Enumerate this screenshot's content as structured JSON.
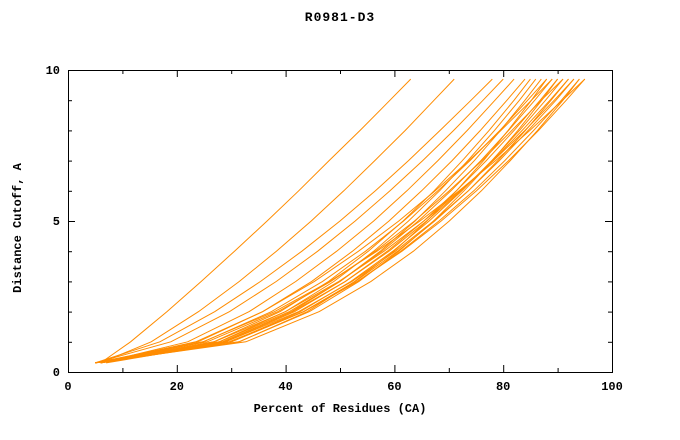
{
  "title": "R0981-D3",
  "chart_data": {
    "type": "line",
    "title": "R0981-D3",
    "xlabel": "Percent of Residues (CA)",
    "ylabel": "Distance Cutoff, A",
    "xlim": [
      0,
      100
    ],
    "ylim": [
      0,
      10
    ],
    "x_ticks": [
      0,
      20,
      40,
      60,
      80,
      100
    ],
    "y_ticks": [
      0,
      5,
      10
    ],
    "x_minor_ticks": [
      10,
      30,
      50,
      70,
      90
    ],
    "y_minor_ticks": [
      1,
      2,
      3,
      4,
      6,
      7,
      8,
      9
    ],
    "grid": false,
    "legend": "none",
    "axis_color": "#000000",
    "line_color": "#ff8c00",
    "y_levels": [
      0.3,
      1,
      2,
      3,
      4,
      5,
      6,
      7,
      8,
      9,
      9.7
    ],
    "series_x": [
      [
        6,
        11.5,
        18.2,
        24.5,
        30.6,
        36.6,
        42.4,
        48.0,
        53.7,
        59.2,
        63.0
      ],
      [
        6,
        15.3,
        24.0,
        31.5,
        38.3,
        44.7,
        50.7,
        56.4,
        62.0,
        67.3,
        71.0
      ],
      [
        5,
        16.9,
        27.0,
        35.4,
        43.0,
        50.0,
        56.5,
        62.6,
        68.4,
        74.1,
        78.0
      ],
      [
        5,
        18.9,
        29.7,
        38.3,
        45.9,
        52.8,
        59.2,
        65.2,
        70.9,
        76.3,
        80.0
      ],
      [
        6,
        22.0,
        33.3,
        41.9,
        49.4,
        56.2,
        62.3,
        68.0,
        73.4,
        78.5,
        82.0
      ],
      [
        5,
        23.9,
        35.8,
        44.8,
        52.3,
        59.0,
        65.0,
        70.6,
        75.8,
        80.7,
        84.0
      ],
      [
        5,
        26.8,
        39.0,
        47.9,
        55.2,
        61.6,
        67.3,
        72.5,
        77.4,
        82.0,
        85.0
      ],
      [
        6,
        27.8,
        40.0,
        48.9,
        56.2,
        62.6,
        68.3,
        73.5,
        78.4,
        83.0,
        86.0
      ],
      [
        5,
        28.6,
        41.1,
        50.0,
        57.4,
        63.8,
        69.4,
        74.7,
        79.5,
        84.0,
        87.0
      ],
      [
        6,
        31.5,
        44.0,
        52.7,
        59.9,
        66.0,
        71.4,
        76.4,
        80.9,
        85.2,
        88.0
      ],
      [
        5,
        24.9,
        37.4,
        46.8,
        54.7,
        61.7,
        68.0,
        73.9,
        79.4,
        84.5,
        88.0
      ],
      [
        5,
        27.9,
        40.7,
        50.0,
        57.7,
        64.4,
        70.4,
        75.9,
        81.0,
        85.8,
        89.0
      ],
      [
        6,
        23.5,
        35.8,
        45.3,
        53.4,
        60.8,
        67.5,
        73.7,
        79.6,
        85.2,
        89.0
      ],
      [
        5,
        31.4,
        44.4,
        53.5,
        60.8,
        67.2,
        72.8,
        78.0,
        82.7,
        87.1,
        90.0
      ],
      [
        6,
        28.9,
        41.7,
        51.0,
        58.7,
        65.4,
        71.4,
        76.9,
        82.0,
        86.8,
        90.0
      ],
      [
        5,
        25.6,
        38.6,
        48.3,
        56.5,
        63.7,
        70.1,
        76.1,
        81.6,
        87.0,
        91.0
      ],
      [
        7,
        29.9,
        42.7,
        52.0,
        59.7,
        66.4,
        72.4,
        77.9,
        83.0,
        87.8,
        91.0
      ],
      [
        5,
        30.1,
        43.3,
        52.8,
        60.6,
        67.4,
        73.6,
        79.0,
        84.1,
        88.8,
        92.0
      ],
      [
        6,
        28.4,
        41.3,
        51.0,
        59.0,
        65.9,
        72.3,
        78.1,
        83.5,
        88.6,
        92.0
      ],
      [
        5,
        29.0,
        42.4,
        52.2,
        60.2,
        67.2,
        73.6,
        79.3,
        84.6,
        89.7,
        93.0
      ],
      [
        6,
        26.9,
        40.0,
        49.8,
        58.1,
        65.4,
        72.1,
        78.2,
        84.0,
        89.4,
        93.0
      ],
      [
        6,
        30.0,
        43.4,
        53.2,
        61.2,
        68.2,
        74.6,
        80.3,
        85.6,
        90.7,
        94.0
      ],
      [
        5,
        32.7,
        46.2,
        55.7,
        63.5,
        70.1,
        76.0,
        81.3,
        86.3,
        91.0,
        94.0
      ],
      [
        6,
        24.8,
        38.0,
        48.1,
        56.8,
        64.7,
        71.9,
        78.6,
        84.9,
        90.9,
        95.0
      ],
      [
        5,
        29.6,
        43.3,
        53.2,
        61.4,
        68.6,
        75.1,
        81.0,
        86.5,
        91.6,
        95.0
      ]
    ]
  }
}
